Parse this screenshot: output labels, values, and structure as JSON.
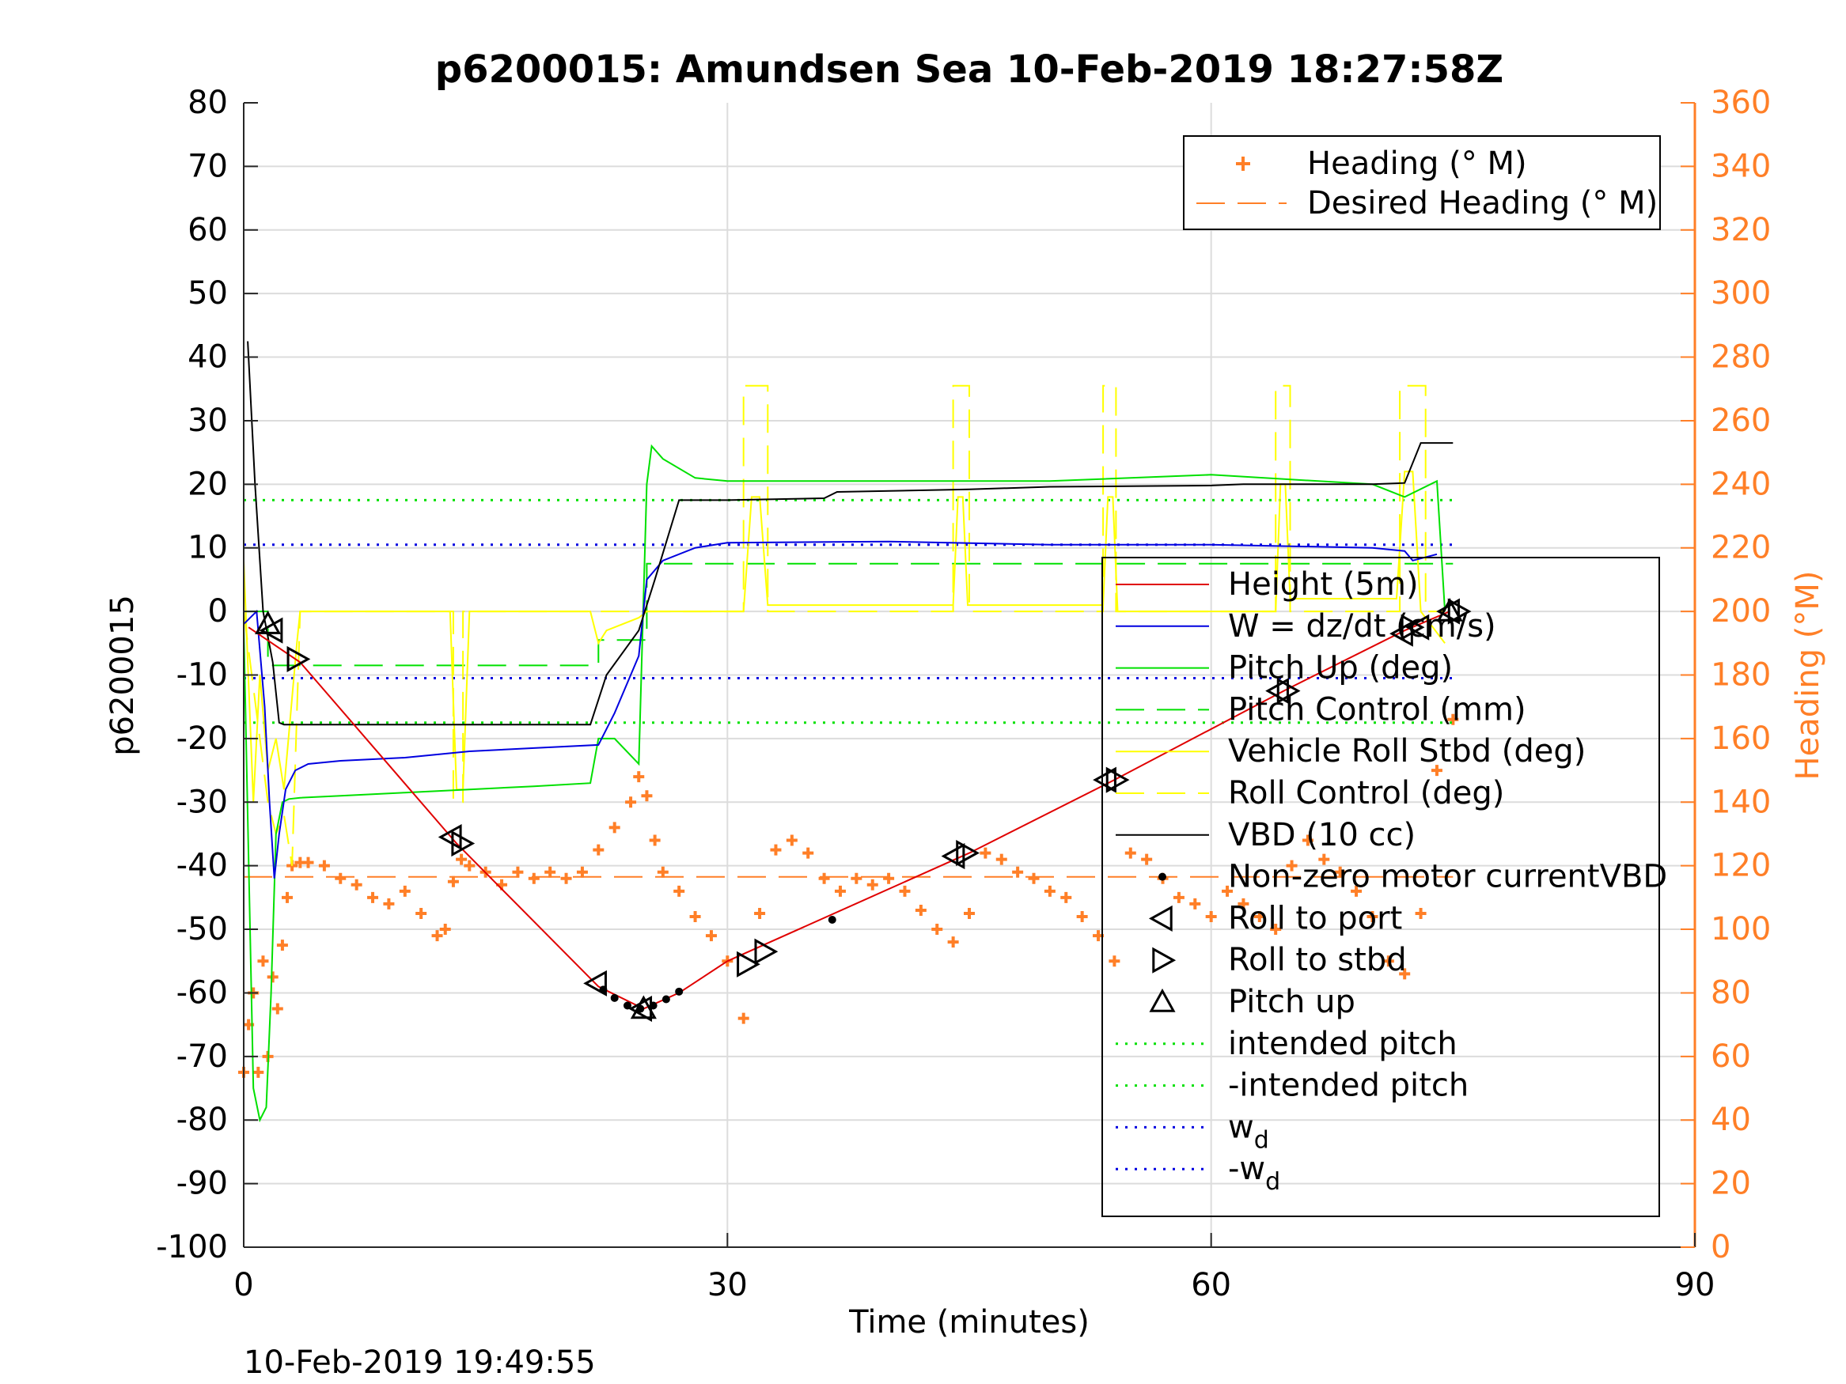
{
  "chart_data": {
    "type": "line",
    "title": "p6200015: Amundsen Sea 10-Feb-2019 18:27:58Z",
    "xlabel": "Time (minutes)",
    "ylabel": "p6200015",
    "y2label": "Heading (°M)",
    "xlim": [
      0,
      90
    ],
    "ylim": [
      -100,
      80
    ],
    "y2lim": [
      0,
      360
    ],
    "xticks": [
      "0",
      "30",
      "60",
      "90"
    ],
    "yticks": [
      "80",
      "70",
      "60",
      "50",
      "40",
      "30",
      "20",
      "10",
      "0",
      "-10",
      "-20",
      "-30",
      "-40",
      "-50",
      "-60",
      "-70",
      "-80",
      "-90",
      "-100"
    ],
    "y2ticks": [
      "360",
      "340",
      "320",
      "300",
      "280",
      "260",
      "240",
      "220",
      "200",
      "180",
      "160",
      "140",
      "120",
      "100",
      "80",
      "60",
      "40",
      "20",
      "0"
    ],
    "grid": true,
    "footer_timestamp": "10-Feb-2019 19:49:55",
    "colors": {
      "height": "#e00000",
      "w": "#0000e0",
      "pitch": "#00e000",
      "roll": "#ffff00",
      "vbd": "#000000",
      "heading": "#ff7f27",
      "axis_right": "#ff7f27"
    },
    "legend_top": {
      "placement": "top-right",
      "entries": [
        "Heading (° M)",
        "Desired Heading (° M)"
      ]
    },
    "legend_main": {
      "placement": "center-right",
      "entries": [
        "Height (5m)",
        "W = dz/dt (cm/s)",
        "Pitch Up (deg)",
        "Pitch Control (mm)",
        "Vehicle Roll Stbd (deg)",
        "Roll Control (deg)",
        "VBD (10 cc)",
        "Non-zero motor currentVBD",
        "Roll to port",
        "Roll to stbd",
        "Pitch up",
        "intended pitch",
        "-intended pitch",
        "w",
        "-w"
      ],
      "subscript": "d"
    },
    "series": [
      {
        "name": "Height (5m)",
        "axis": "left",
        "x": [
          0.3,
          3.5,
          13.2,
          22,
          24.8,
          27,
          30,
          45,
          54,
          64.5,
          72,
          74.8
        ],
        "y": [
          -2.5,
          -8,
          -36.5,
          -59,
          -62.5,
          -60,
          -55,
          -38,
          -26.5,
          -12.5,
          -3,
          0
        ]
      },
      {
        "name": "W = dz/dt (cm/s)",
        "axis": "left",
        "x": [
          0,
          0.8,
          1.3,
          1.6,
          1.9,
          2.2,
          2.6,
          3.2,
          4,
          6,
          10,
          14,
          18,
          22,
          23,
          24.5,
          25,
          26,
          28,
          30,
          40,
          50,
          60,
          70,
          72,
          72.5,
          74
        ],
        "y": [
          -2,
          0,
          -15,
          -30,
          -42,
          -35,
          -28,
          -25,
          -24,
          -23.5,
          -23,
          -22,
          -21.5,
          -21,
          -16,
          -7,
          5,
          8,
          10,
          10.8,
          11,
          10.5,
          10.5,
          10,
          9.5,
          8,
          9
        ]
      },
      {
        "name": "Pitch Up (deg)",
        "axis": "left",
        "x": [
          0,
          0.6,
          1.0,
          1.4,
          1.7,
          2.0,
          2.4,
          2.8,
          3.5,
          6,
          10,
          14,
          18,
          21.5,
          22,
          23,
          24.5,
          25,
          25.3,
          26,
          28,
          30,
          40,
          50,
          60,
          70,
          72,
          74,
          74.5
        ],
        "y": [
          -2,
          -75,
          -80,
          -78,
          -60,
          -35,
          -30,
          -29.5,
          -29.3,
          -29,
          -28.5,
          -28,
          -27.5,
          -27,
          -20,
          -20,
          -24,
          20,
          26,
          24,
          21,
          20.5,
          20.5,
          20.5,
          21.5,
          20,
          18,
          20.5,
          0
        ]
      },
      {
        "name": "Pitch Control (mm)",
        "axis": "left",
        "dash": "long",
        "x": [
          0,
          1.5,
          1.5,
          22,
          22,
          25,
          25,
          75
        ],
        "y": [
          0,
          0,
          -8.5,
          -8.5,
          -4.5,
          -4.5,
          7.5,
          7.5
        ]
      },
      {
        "name": "Vehicle Roll Stbd (deg)",
        "axis": "left",
        "x": [
          0,
          0.6,
          1.0,
          1.5,
          2.0,
          2.5,
          3.3,
          3.5,
          12.8,
          13.2,
          13.6,
          14.0,
          21.5,
          22.0,
          22.5,
          24.5,
          25.0,
          31.0,
          31.5,
          32.0,
          32.5,
          44.0,
          44.3,
          44.6,
          44.9,
          53.3,
          53.6,
          53.9,
          54.2,
          64.0,
          64.3,
          64.6,
          64.9,
          71.5,
          72.0,
          72.5,
          73.0,
          74.5
        ],
        "y": [
          8,
          -30,
          -10,
          -25,
          -20,
          -28,
          -5,
          0,
          0,
          -28,
          -28,
          0,
          0,
          -5,
          -3,
          -1,
          0,
          0,
          18,
          18,
          1,
          1,
          18,
          18,
          1,
          1,
          18,
          18,
          0,
          0,
          20,
          20,
          2,
          2,
          22,
          22,
          0,
          -5
        ]
      },
      {
        "name": "Roll Control (deg)",
        "axis": "left",
        "dash": "long",
        "x": [
          0,
          1.5,
          2.0,
          2.5,
          3.0,
          3.5,
          13.0,
          13.0,
          13.6,
          13.6,
          31.0,
          31.0,
          32.5,
          32.5,
          44.0,
          44.0,
          45.0,
          45.0,
          53.3,
          53.3,
          54.1,
          54.1,
          64.0,
          64.0,
          64.9,
          64.9,
          71.7,
          71.7,
          73.3,
          73.3,
          74.5
        ],
        "y": [
          0,
          -30,
          -35,
          -32,
          -40,
          0,
          0,
          -30,
          -30,
          0,
          0,
          35.5,
          35.5,
          0,
          0,
          35.5,
          35.5,
          0,
          0,
          35.5,
          35.5,
          0,
          0,
          35.5,
          35.5,
          0,
          0,
          35.5,
          35.5,
          0,
          0
        ]
      },
      {
        "name": "VBD (10 cc)",
        "axis": "left",
        "x": [
          0.25,
          0.7,
          1.2,
          1.8,
          2.2,
          2.5,
          21.5,
          22.5,
          24.5,
          25.5,
          27,
          30,
          36,
          36.8,
          45,
          50,
          60,
          62,
          70,
          72,
          73,
          75
        ],
        "y": [
          42.5,
          20,
          0,
          -8,
          -17.5,
          -17.8,
          -17.8,
          -10,
          -3,
          5,
          17.5,
          17.5,
          17.8,
          18.8,
          19.2,
          19.6,
          19.8,
          20,
          20,
          20.2,
          26.5,
          26.5
        ]
      },
      {
        "name": "Non-zero motor currentVBD",
        "axis": "left",
        "marker": "dot",
        "x": [
          22.3,
          23,
          23.8,
          24.6,
          25.4,
          26.2,
          27.0,
          36.5
        ],
        "y": [
          -59.5,
          -60.8,
          -62,
          -62.5,
          -62,
          -61,
          -59.8,
          -48.5
        ]
      },
      {
        "name": "Roll to port",
        "axis": "left",
        "marker": "triangle-left",
        "x": [
          1.8,
          12.9,
          21.9,
          24.7,
          44.1,
          53.5,
          64.2,
          71.9,
          72.9,
          74.8
        ],
        "y": [
          -3,
          -35.5,
          -58.5,
          -62.5,
          -38.5,
          -26.5,
          -12.5,
          -3.5,
          -2.5,
          0
        ]
      },
      {
        "name": "Roll to stbd",
        "axis": "left",
        "marker": "triangle-right",
        "x": [
          3.3,
          13.5,
          31.2,
          32.3,
          44.8,
          54.1,
          64.7,
          72.4,
          75.3
        ],
        "y": [
          -7.5,
          -36.5,
          -55.5,
          -53.5,
          -38,
          -26.5,
          -12.5,
          -2.5,
          0
        ]
      },
      {
        "name": "Pitch up",
        "axis": "left",
        "marker": "triangle-up",
        "x": [
          1.5,
          24.8,
          74.8
        ],
        "y": [
          -2,
          -62.5,
          0
        ]
      },
      {
        "name": "intended pitch",
        "axis": "left",
        "dash": "dot",
        "x": [
          0,
          75
        ],
        "y": [
          17.5,
          17.5
        ]
      },
      {
        "name": "-intended pitch",
        "axis": "left",
        "dash": "dot",
        "x": [
          0,
          75
        ],
        "y": [
          -17.5,
          -17.5
        ]
      },
      {
        "name": "w_d",
        "axis": "left",
        "dash": "dot",
        "x": [
          0,
          75
        ],
        "y": [
          10.5,
          10.5
        ]
      },
      {
        "name": "-w_d",
        "axis": "left",
        "dash": "dot",
        "x": [
          0,
          75
        ],
        "y": [
          -10.5,
          -10.5
        ]
      },
      {
        "name": "Heading (° M)",
        "axis": "right",
        "marker": "plus",
        "x": [
          0,
          0.3,
          0.6,
          0.9,
          1.2,
          1.5,
          1.8,
          2.1,
          2.4,
          2.7,
          3,
          3.5,
          4,
          5,
          6,
          7,
          8,
          9,
          10,
          11,
          12,
          12.5,
          13,
          13.5,
          14,
          15,
          16,
          17,
          18,
          19,
          20,
          21,
          22,
          23,
          24,
          24.5,
          25,
          25.5,
          26,
          27,
          28,
          29,
          30,
          31,
          32,
          33,
          34,
          35,
          36,
          37,
          38,
          39,
          40,
          41,
          42,
          43,
          44,
          45,
          46,
          47,
          48,
          49,
          50,
          51,
          52,
          53,
          54,
          55,
          56,
          57,
          58,
          59,
          60,
          61,
          62,
          63,
          64,
          65,
          66,
          67,
          68,
          69,
          70,
          71,
          72,
          73,
          74,
          75
        ],
        "y": [
          55,
          70,
          80,
          55,
          90,
          60,
          85,
          75,
          95,
          110,
          120,
          121,
          121,
          120,
          116,
          114,
          110,
          108,
          112,
          105,
          98,
          100,
          115,
          122,
          120,
          118,
          114,
          118,
          116,
          118,
          116,
          118,
          125,
          132,
          140,
          148,
          142,
          128,
          118,
          112,
          104,
          98,
          90,
          72,
          105,
          125,
          128,
          124,
          116,
          112,
          116,
          114,
          116,
          112,
          106,
          100,
          96,
          105,
          124,
          122,
          118,
          116,
          112,
          110,
          104,
          98,
          90,
          124,
          122,
          116,
          110,
          108,
          104,
          112,
          108,
          104,
          100,
          120,
          128,
          122,
          118,
          112,
          104,
          90,
          86,
          105,
          150,
          166
        ]
      },
      {
        "name": "Desired Heading (° M)",
        "axis": "right",
        "dash": "long",
        "x": [
          0,
          75
        ],
        "y": [
          116.5,
          116.5
        ]
      }
    ]
  }
}
